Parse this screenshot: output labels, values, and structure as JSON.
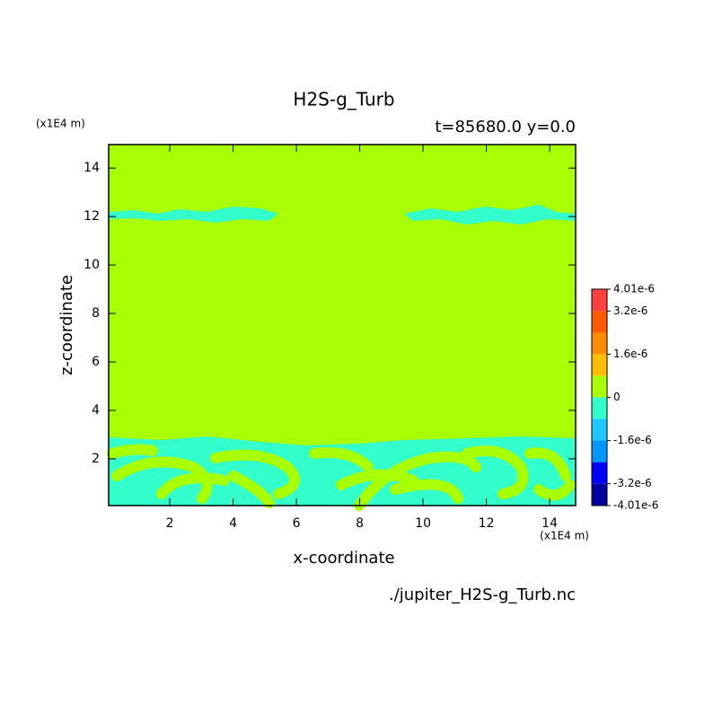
{
  "chart_data": {
    "type": "contour",
    "title": "H2S-g_Turb",
    "subtitle": "t=85680.0 y=0.0",
    "x_label": "x-coordinate",
    "y_label": "z-coordinate",
    "x_unit": "(x1E4 m)",
    "y_unit": "(x1E4 m)",
    "source": "./jupiter_H2S-g_Turb.nc",
    "xlim": [
      0.07,
      14.82
    ],
    "ylim": [
      0.07,
      14.97
    ],
    "xticks": [
      2,
      4,
      6,
      8,
      10,
      12,
      14
    ],
    "yticks": [
      2,
      4,
      6,
      8,
      10,
      12,
      14
    ],
    "levels": [
      -4.01e-06,
      -3.2e-06,
      -2.4e-06,
      -1.6e-06,
      -8e-07,
      0,
      8e-07,
      1.6e-06,
      2.4e-06,
      3.2e-06,
      4.01e-06
    ],
    "colors": [
      "#0000a0",
      "#0000ff",
      "#0096ff",
      "#1ec8ff",
      "#33ffcc",
      "#a8ff00",
      "#ffbf00",
      "#ff8c00",
      "#ff5a00",
      "#ff4040"
    ],
    "colorbar_ticks": [
      {
        "value": 4.01e-06,
        "label": "4.01e-6"
      },
      {
        "value": 3.2e-06,
        "label": "3.2e-6"
      },
      {
        "value": 1.6e-06,
        "label": "1.6e-6"
      },
      0,
      {
        "value": -1.6e-06,
        "label": "-1.6e-6"
      },
      {
        "value": -3.2e-06,
        "label": "-3.2e-6"
      },
      {
        "value": -4.01e-06,
        "label": "-4.01e-6"
      }
    ]
  }
}
